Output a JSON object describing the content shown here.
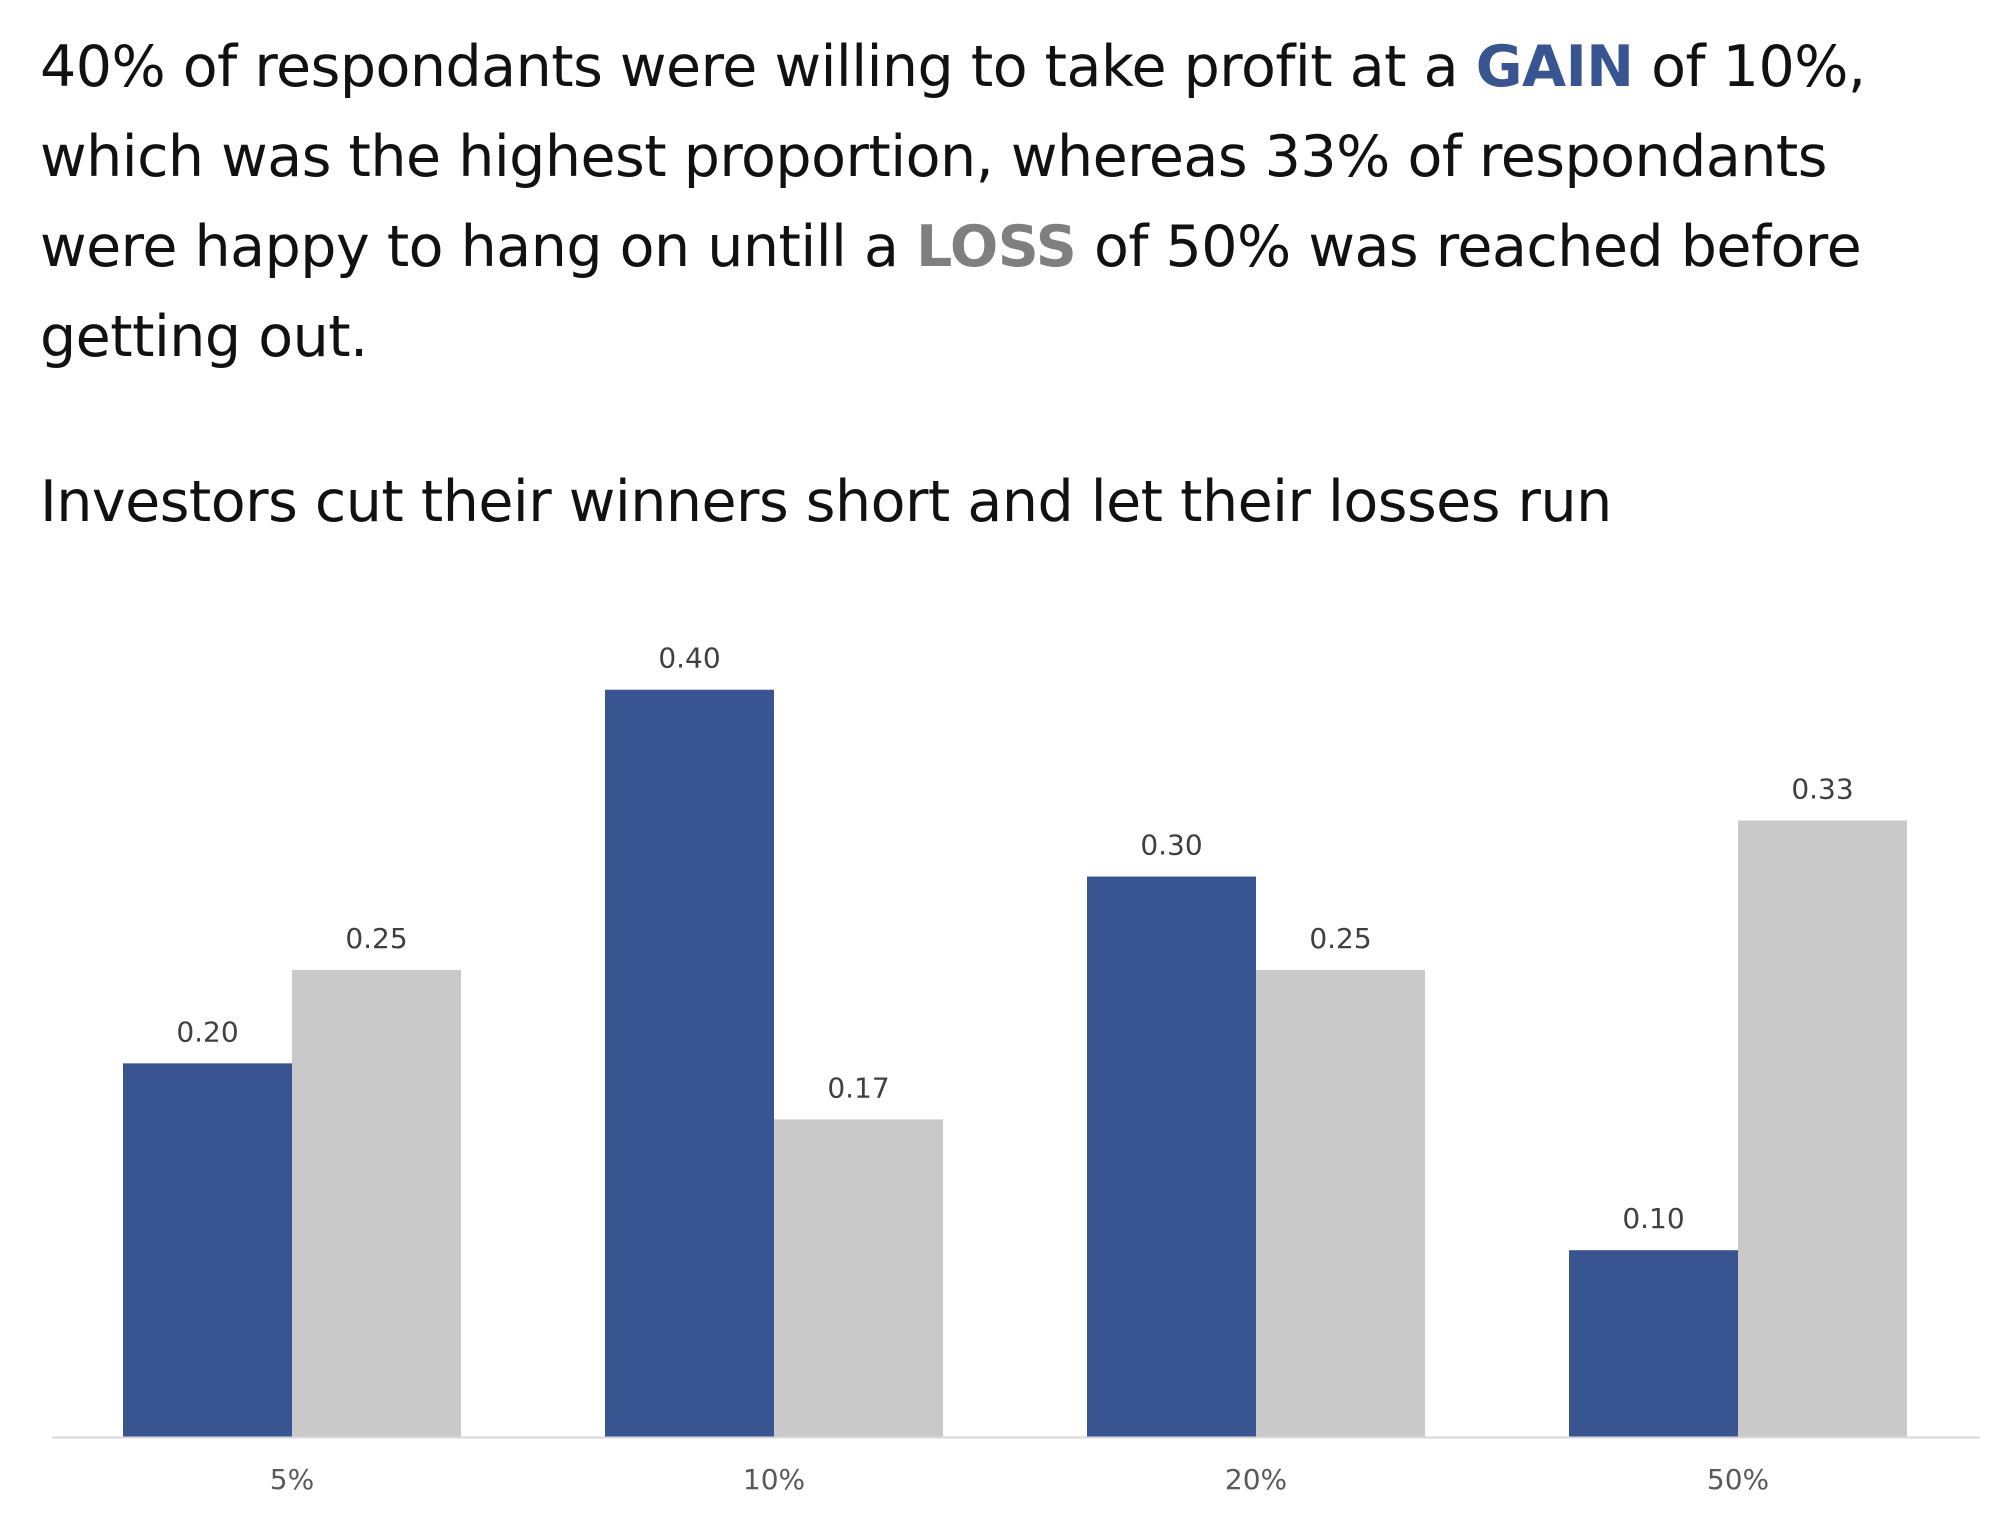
{
  "narrative": {
    "part1": "40% of respondants were willing to take profit at a ",
    "gain_word": "GAIN",
    "part2": " of 10%, which was the highest proportion, whereas  33% of respondants were happy to hang on untill a ",
    "loss_word": "LOSS",
    "part3": " of 50% was reached before getting out."
  },
  "colors": {
    "gain": "#385592",
    "loss": "#c9c9c9",
    "loss_text": "#7f7f7f",
    "axis": "#d9d9d9"
  },
  "chart_data": {
    "type": "bar",
    "title": "Investors cut their winners short and let their losses run",
    "categories": [
      "5%",
      "10%",
      "20%",
      "50%"
    ],
    "series": [
      {
        "values": [
          0.2,
          0.4,
          0.3,
          0.1
        ],
        "color": "#385592"
      },
      {
        "values": [
          0.25,
          0.17,
          0.25,
          0.33
        ],
        "color": "#c9c9c9"
      }
    ],
    "data_labels": [
      [
        "0.20",
        "0.40",
        "0.30",
        "0.10"
      ],
      [
        "0.25",
        "0.17",
        "0.25",
        "0.33"
      ]
    ],
    "ylim": [
      0,
      0.44
    ],
    "grid": false,
    "legend": "none",
    "y_axis_visible": false
  }
}
